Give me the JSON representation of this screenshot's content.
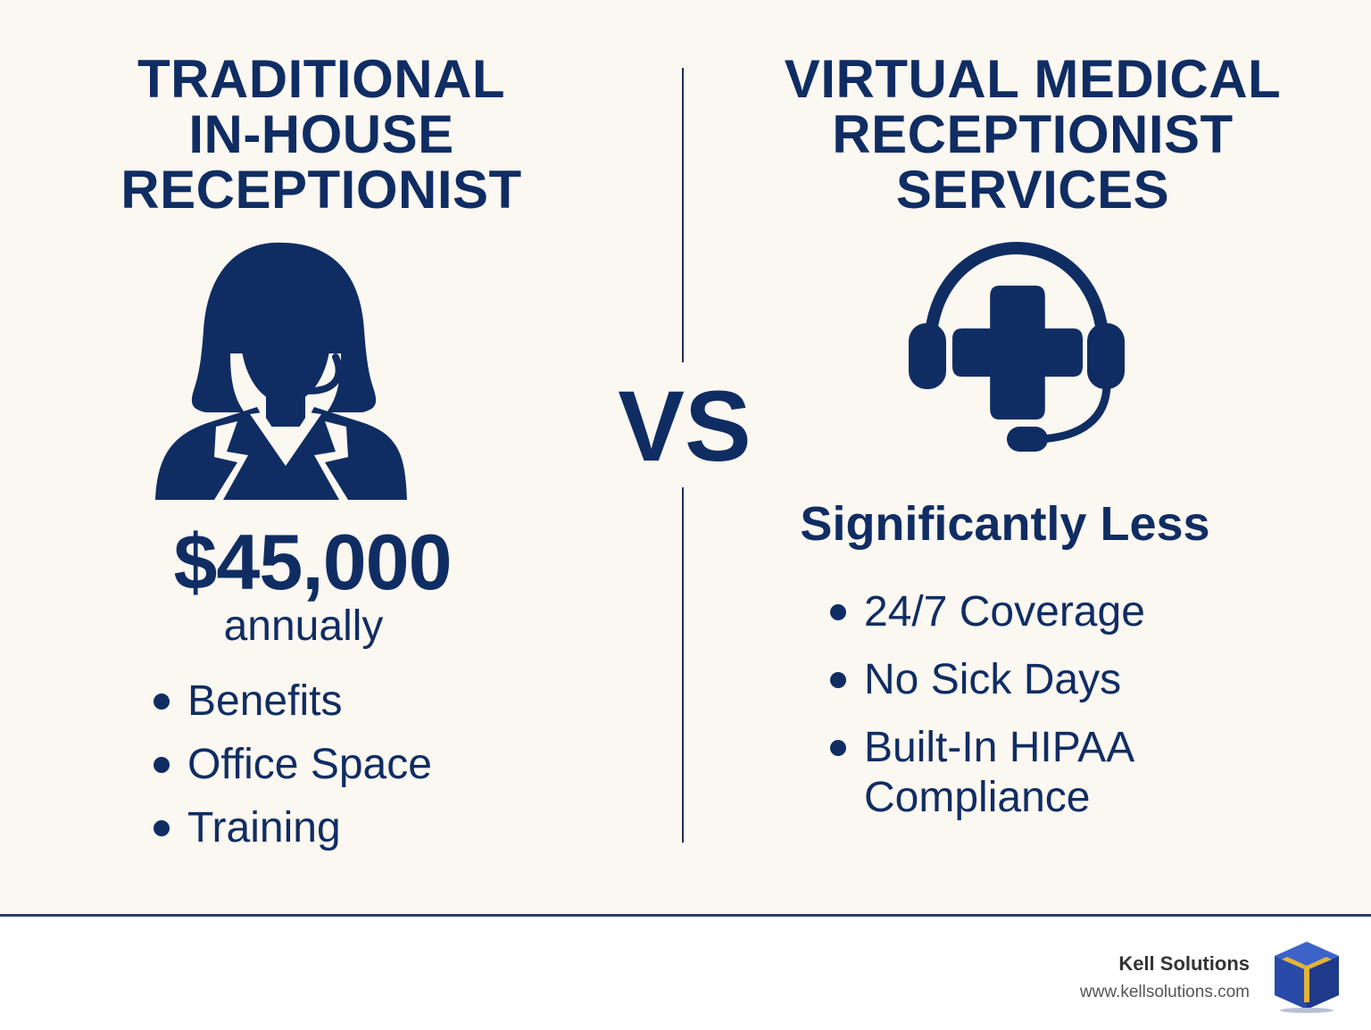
{
  "left": {
    "heading_lines": [
      "TRADITIONAL",
      "IN-HOUSE",
      "RECEPTIONIST"
    ],
    "icon": "receptionist-headset-person-icon",
    "price": "$45,000",
    "price_sub": "annually",
    "bullets": [
      "Benefits",
      "Office Space",
      "Training"
    ]
  },
  "vs_label": "VS",
  "right": {
    "heading_lines": [
      "VIRTUAL MEDICAL",
      "RECEPTIONIST",
      "SERVICES"
    ],
    "icon": "medical-cross-headset-icon",
    "summary": "Significantly Less",
    "bullets": [
      "24/7 Coverage",
      "No Sick Days",
      "Built-In HIPAA Compliance"
    ]
  },
  "footer": {
    "brand_name": "Kell Solutions",
    "brand_url": "www.kellsolutions.com",
    "logo_icon": "kell-solutions-cube-logo"
  },
  "colors": {
    "navy": "#102d63",
    "background": "#fbf7f1",
    "logo_blue": "#2f4fb0",
    "logo_gold": "#e2b53a"
  }
}
